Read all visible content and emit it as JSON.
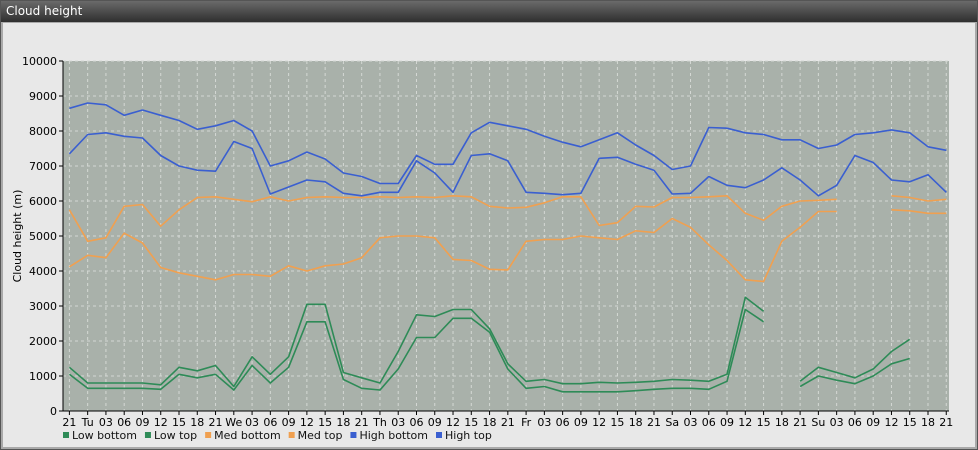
{
  "window": {
    "title": "Cloud height"
  },
  "chart_data": {
    "type": "line",
    "ylabel": "Cloud height (m)",
    "ylim": [
      0,
      10000
    ],
    "yticks": [
      0,
      1000,
      2000,
      3000,
      4000,
      5000,
      6000,
      7000,
      8000,
      9000,
      10000
    ],
    "categories": [
      "21",
      "Tu",
      "03",
      "06",
      "09",
      "12",
      "15",
      "18",
      "21",
      "We",
      "03",
      "06",
      "09",
      "12",
      "15",
      "18",
      "21",
      "Th",
      "03",
      "06",
      "09",
      "12",
      "15",
      "18",
      "21",
      "Fr",
      "03",
      "06",
      "09",
      "12",
      "15",
      "18",
      "21",
      "Sa",
      "03",
      "06",
      "09",
      "12",
      "15",
      "18",
      "21",
      "Su",
      "03",
      "06",
      "09",
      "12",
      "15",
      "18",
      "21"
    ],
    "grid": true,
    "legend_position": "bottom-left",
    "colors": {
      "plot_bg": "#a9b1aa",
      "low": "#2e8b57",
      "med": "#f0a050",
      "high": "#3a5fd0"
    },
    "series": [
      {
        "name": "Low bottom",
        "color": "#2e8b57",
        "values": [
          1050,
          650,
          650,
          650,
          650,
          620,
          1050,
          950,
          1050,
          600,
          1300,
          800,
          1250,
          2550,
          2550,
          900,
          650,
          600,
          1200,
          2100,
          2100,
          2650,
          2650,
          2250,
          1200,
          650,
          700,
          550,
          550,
          550,
          550,
          580,
          620,
          650,
          650,
          620,
          850,
          2900,
          2550,
          null,
          700,
          1000,
          880,
          780,
          1000,
          1350,
          1500,
          null,
          null
        ]
      },
      {
        "name": "Low top",
        "color": "#2e8b57",
        "values": [
          1250,
          800,
          800,
          800,
          800,
          750,
          1250,
          1150,
          1300,
          700,
          1550,
          1050,
          1550,
          3050,
          3050,
          1100,
          950,
          800,
          1700,
          2750,
          2700,
          2900,
          2900,
          2350,
          1350,
          850,
          900,
          780,
          780,
          820,
          800,
          820,
          850,
          900,
          880,
          850,
          1050,
          3250,
          2850,
          null,
          850,
          1250,
          1100,
          950,
          1200,
          1700,
          2050,
          null,
          null
        ]
      },
      {
        "name": "Med bottom",
        "color": "#f0a050",
        "values": [
          4120,
          4450,
          4380,
          5080,
          4800,
          4100,
          3950,
          3850,
          3750,
          3900,
          3900,
          3850,
          4150,
          4000,
          4150,
          4200,
          4380,
          4950,
          5000,
          5000,
          4950,
          4330,
          4300,
          4050,
          4030,
          4850,
          4900,
          4900,
          5000,
          4950,
          4900,
          5150,
          5100,
          5500,
          5250,
          4750,
          4300,
          3750,
          3700,
          4850,
          5250,
          5700,
          5700,
          null,
          null,
          5750,
          5720,
          5650,
          5650
        ]
      },
      {
        "name": "Med top",
        "color": "#f0a050",
        "values": [
          5750,
          4850,
          4950,
          5850,
          5900,
          5280,
          5750,
          6100,
          6120,
          6050,
          5980,
          6120,
          6000,
          6100,
          6120,
          6100,
          6100,
          6120,
          6100,
          6120,
          6100,
          6150,
          6120,
          5850,
          5800,
          5820,
          5950,
          6120,
          6120,
          5300,
          5380,
          5850,
          5830,
          6100,
          6100,
          6120,
          6150,
          5650,
          5450,
          5850,
          6000,
          6020,
          6050,
          null,
          null,
          6150,
          6100,
          6000,
          6050
        ]
      },
      {
        "name": "High bottom",
        "color": "#3a5fd0",
        "values": [
          7350,
          7900,
          7950,
          7850,
          7800,
          7300,
          7000,
          6880,
          6850,
          7700,
          7500,
          6200,
          6400,
          6600,
          6550,
          6220,
          6150,
          6250,
          6250,
          7150,
          6800,
          6250,
          7300,
          7350,
          7150,
          6250,
          6220,
          6180,
          6220,
          7220,
          7250,
          7050,
          6880,
          6200,
          6220,
          6700,
          6450,
          6380,
          6600,
          6950,
          6600,
          6150,
          6450,
          7300,
          7100,
          6600,
          6550,
          6750,
          6250
        ]
      },
      {
        "name": "High top",
        "color": "#3a5fd0",
        "values": [
          8650,
          8800,
          8750,
          8450,
          8600,
          8450,
          8300,
          8050,
          8150,
          8300,
          8000,
          7000,
          7150,
          7400,
          7200,
          6800,
          6700,
          6500,
          6500,
          7300,
          7050,
          7050,
          7950,
          8250,
          8150,
          8050,
          7850,
          7680,
          7550,
          7750,
          7950,
          7600,
          7300,
          6900,
          7000,
          8100,
          8080,
          7950,
          7900,
          7750,
          7750,
          7500,
          7600,
          7900,
          7950,
          8030,
          7950,
          7550,
          7450
        ]
      }
    ]
  }
}
